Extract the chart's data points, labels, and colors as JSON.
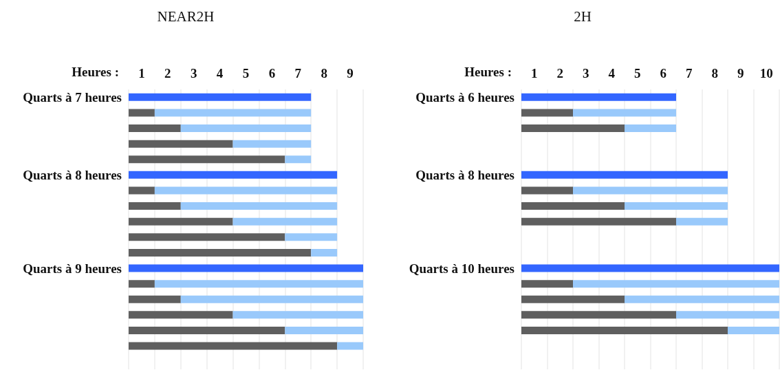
{
  "chart_data": [
    {
      "type": "bar",
      "title": "NEAR2H",
      "xlabel": "Heures :",
      "orientation": "horizontal",
      "stacked": true,
      "grid": "x",
      "xlim": [
        0,
        9
      ],
      "xticks": [
        {
          "value": 0.5,
          "label": "1"
        },
        {
          "value": 1.5,
          "label": "2"
        },
        {
          "value": 2.5,
          "label": "3"
        },
        {
          "value": 3.5,
          "label": "4"
        },
        {
          "value": 4.5,
          "label": "5"
        },
        {
          "value": 5.5,
          "label": "6"
        },
        {
          "value": 6.5,
          "label": "7"
        },
        {
          "value": 7.5,
          "label": "8"
        },
        {
          "value": 8.5,
          "label": "9"
        }
      ],
      "categories": [
        "Quarts à 7 heures",
        null,
        null,
        null,
        null,
        "Quarts à 8 heures",
        null,
        null,
        null,
        null,
        null,
        "Quarts à 9 heures",
        null,
        null,
        null,
        null,
        null,
        null
      ],
      "series": [
        {
          "color": "#5f5f5f",
          "values": [
            null,
            1,
            2,
            4,
            6,
            null,
            1,
            2,
            4,
            6,
            7,
            null,
            1,
            2,
            4,
            6,
            8,
            null
          ]
        },
        {
          "color": "#99c9fb",
          "values": [
            null,
            6,
            5,
            3,
            1,
            null,
            7,
            6,
            4,
            2,
            1,
            null,
            8,
            7,
            5,
            3,
            1,
            null
          ]
        },
        {
          "color": "#3366ff",
          "values": [
            7,
            null,
            null,
            null,
            null,
            8,
            null,
            null,
            null,
            null,
            null,
            9,
            null,
            null,
            null,
            null,
            null,
            null
          ]
        }
      ]
    },
    {
      "type": "bar",
      "title": "2H",
      "xlabel": "Heures :",
      "orientation": "horizontal",
      "stacked": true,
      "grid": "x",
      "xlim": [
        0,
        10
      ],
      "xticks": [
        {
          "value": 0.5,
          "label": "1"
        },
        {
          "value": 1.5,
          "label": "2"
        },
        {
          "value": 2.5,
          "label": "3"
        },
        {
          "value": 3.5,
          "label": "4"
        },
        {
          "value": 4.5,
          "label": "5"
        },
        {
          "value": 5.5,
          "label": "6"
        },
        {
          "value": 6.5,
          "label": "7"
        },
        {
          "value": 7.5,
          "label": "8"
        },
        {
          "value": 8.5,
          "label": "9"
        },
        {
          "value": 9.5,
          "label": "10"
        }
      ],
      "categories": [
        "Quarts à 6 heures",
        null,
        null,
        null,
        null,
        "Quarts à 8 heures",
        null,
        null,
        null,
        null,
        null,
        "Quarts à 10 heures",
        null,
        null,
        null,
        null,
        null,
        null
      ],
      "series": [
        {
          "color": "#5f5f5f",
          "values": [
            null,
            2,
            4,
            null,
            null,
            null,
            2,
            4,
            6,
            null,
            null,
            null,
            2,
            4,
            6,
            8,
            null,
            null
          ]
        },
        {
          "color": "#99c9fb",
          "values": [
            null,
            4,
            2,
            null,
            null,
            null,
            6,
            4,
            2,
            null,
            null,
            null,
            8,
            6,
            4,
            2,
            null,
            null
          ]
        },
        {
          "color": "#3366ff",
          "values": [
            6,
            null,
            null,
            null,
            null,
            8,
            null,
            null,
            null,
            null,
            null,
            10,
            null,
            null,
            null,
            null,
            null,
            null
          ]
        }
      ]
    }
  ]
}
